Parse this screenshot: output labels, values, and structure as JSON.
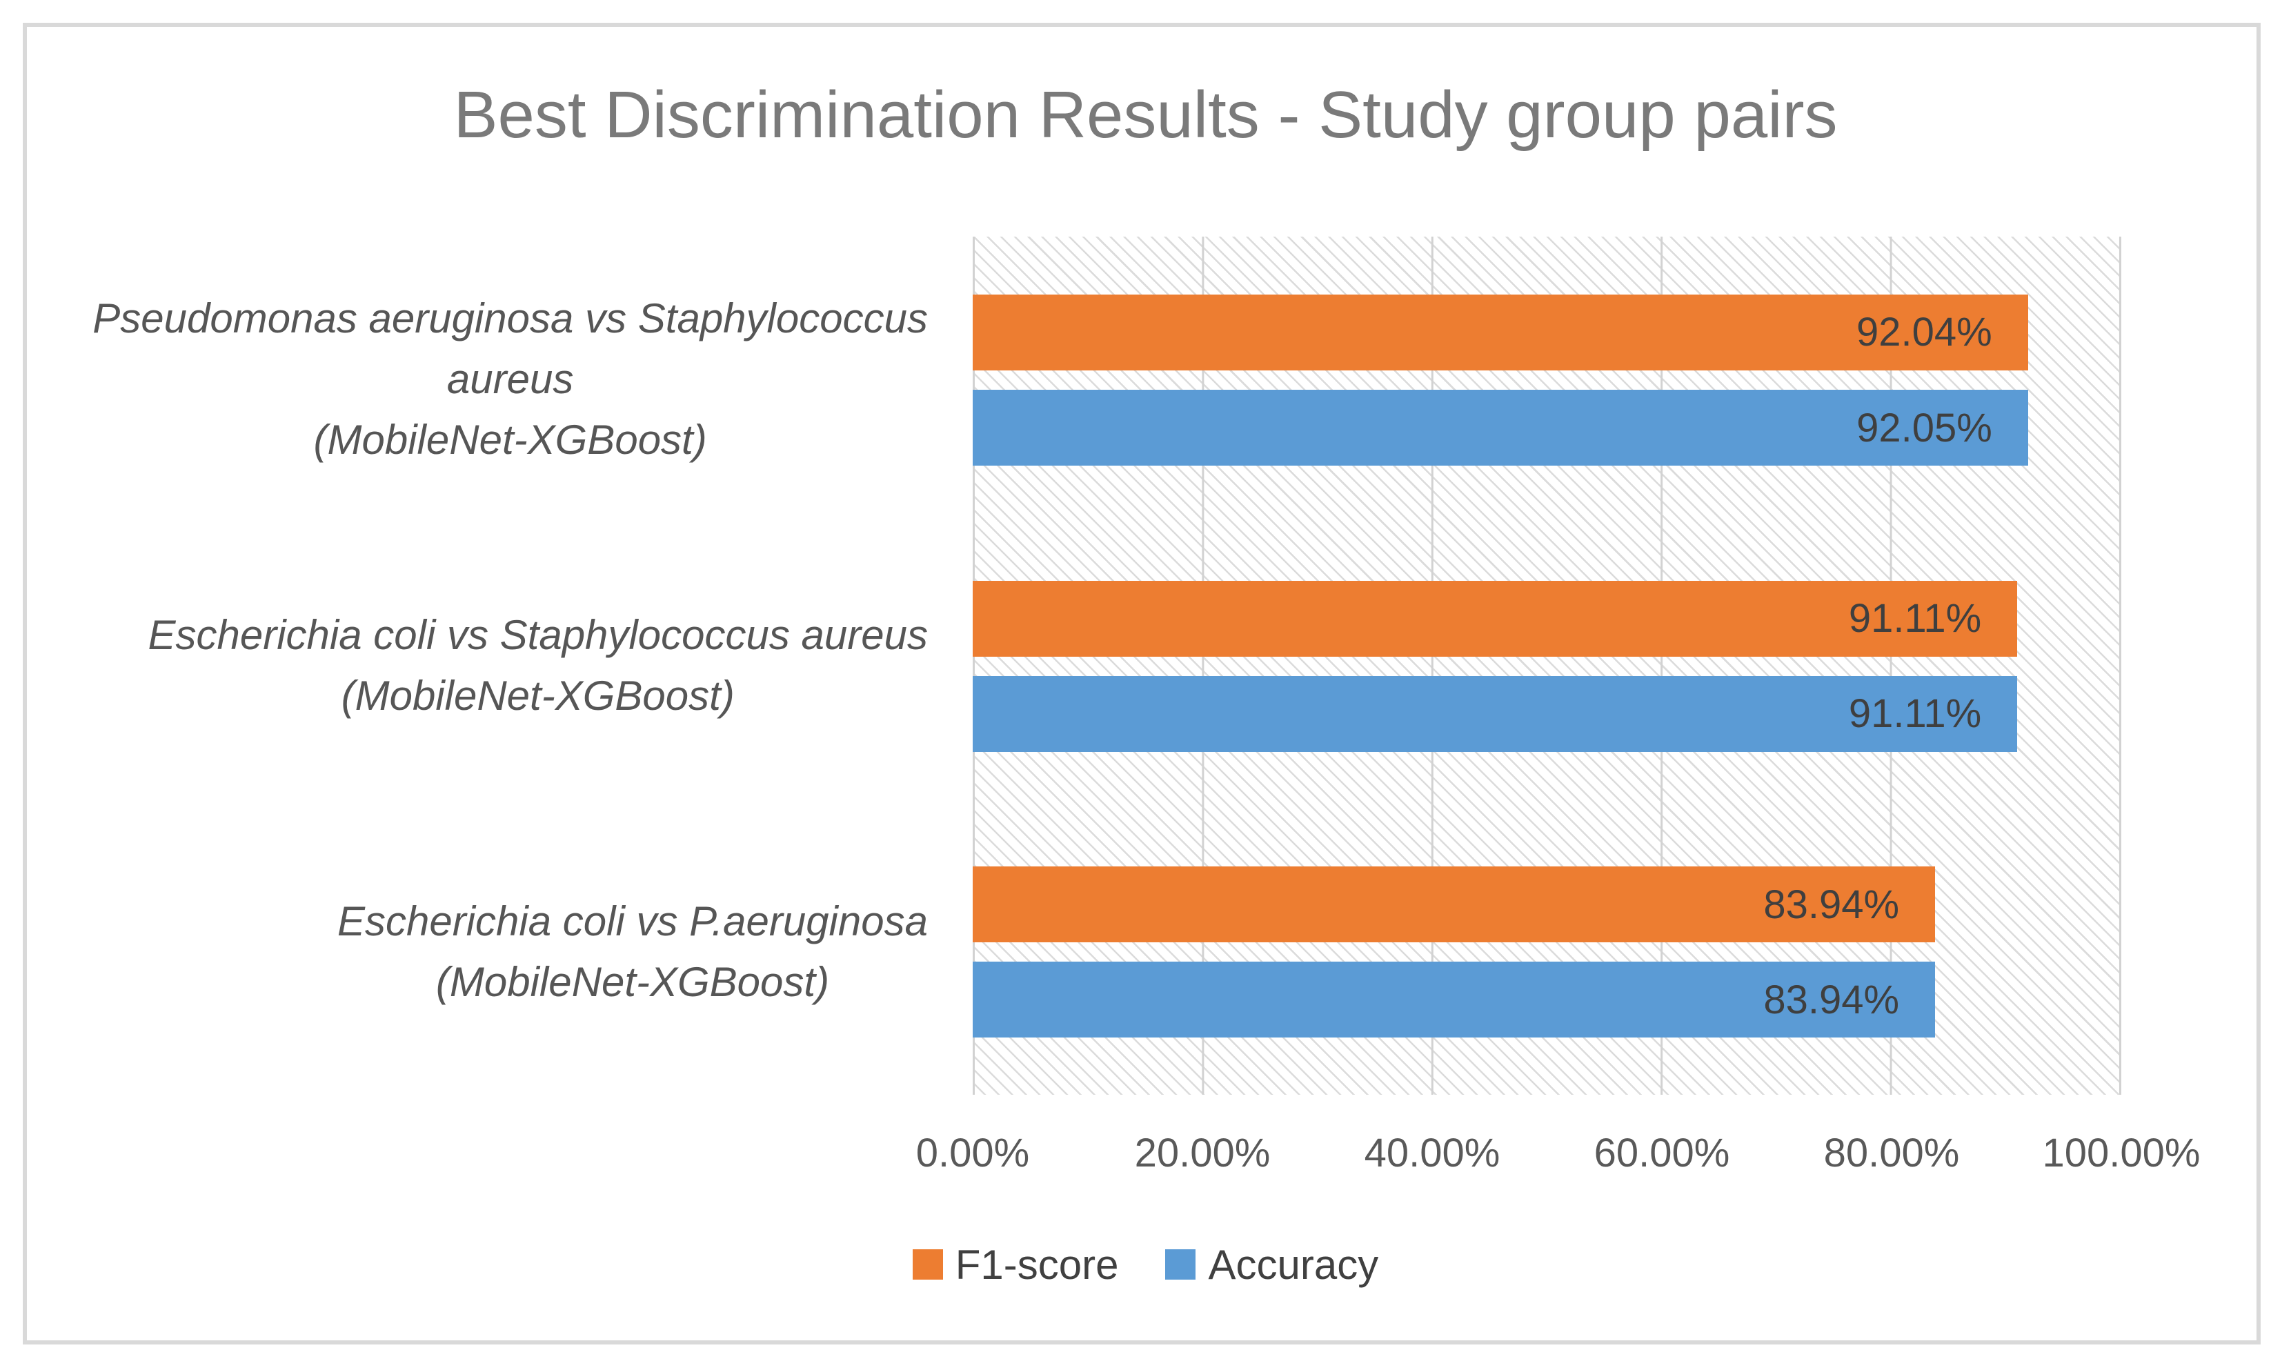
{
  "chart_data": {
    "type": "bar",
    "orientation": "horizontal",
    "title": "Best Discrimination Results - Study group pairs",
    "x_axis": {
      "min": 0,
      "max": 100,
      "ticks": [
        "0.00%",
        "20.00%",
        "40.00%",
        "60.00%",
        "80.00%",
        "100.00%"
      ],
      "grid": true
    },
    "categories": [
      {
        "label": "Pseudomonas aeruginosa vs Staphylococcus aureus (MobileNet-XGBoost)",
        "label_lines": [
          "Pseudomonas aeruginosa vs Staphylococcus",
          "aureus",
          "(MobileNet-XGBoost)"
        ]
      },
      {
        "label": "Escherichia coli vs Staphylococcus aureus (MobileNet-XGBoost)",
        "label_lines": [
          "Escherichia coli vs Staphylococcus aureus",
          "(MobileNet-XGBoost)"
        ]
      },
      {
        "label": "Escherichia coli vs P.aeruginosa (MobileNet-XGBoost)",
        "label_lines": [
          "Escherichia coli vs P.aeruginosa",
          "(MobileNet-XGBoost)"
        ]
      }
    ],
    "series": [
      {
        "name": "F1-score",
        "color": "#ED7D31",
        "values": [
          92.04,
          91.11,
          83.94
        ],
        "value_labels": [
          "92.04%",
          "91.11%",
          "83.94%"
        ]
      },
      {
        "name": "Accuracy",
        "color": "#5B9BD5",
        "values": [
          92.05,
          91.11,
          83.94
        ],
        "value_labels": [
          "92.05%",
          "91.11%",
          "83.94%"
        ]
      }
    ],
    "legend": {
      "position": "bottom",
      "items": [
        {
          "label": "F1-score",
          "color": "#ED7D31"
        },
        {
          "label": "Accuracy",
          "color": "#5B9BD5"
        }
      ]
    },
    "plot_background": "diagonal-hatch"
  }
}
